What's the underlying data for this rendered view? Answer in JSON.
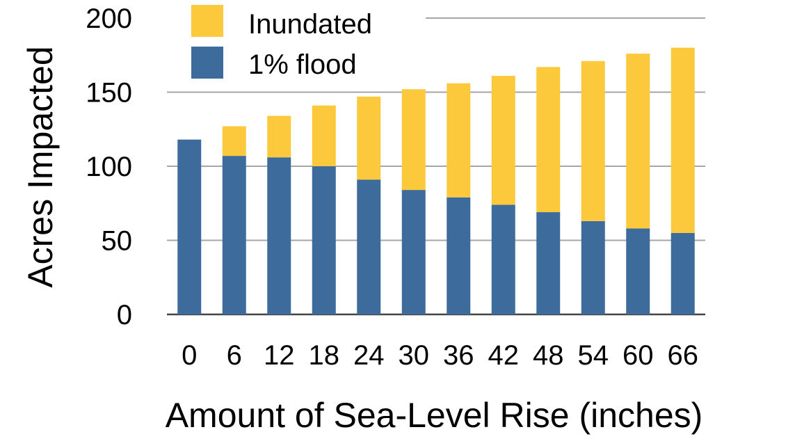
{
  "chart_data": {
    "type": "bar",
    "stacked": true,
    "categories": [
      "0",
      "6",
      "12",
      "18",
      "24",
      "30",
      "36",
      "42",
      "48",
      "54",
      "60",
      "66"
    ],
    "series": [
      {
        "name": "1% flood",
        "color": "#3d6b9c",
        "values": [
          118,
          107,
          106,
          100,
          91,
          84,
          79,
          74,
          69,
          63,
          58,
          55
        ]
      },
      {
        "name": "Inundated",
        "color": "#fcc93c",
        "values": [
          0,
          20,
          28,
          41,
          56,
          68,
          77,
          87,
          98,
          108,
          118,
          125
        ]
      }
    ],
    "xlabel": "Amount of Sea-Level Rise (inches)",
    "ylabel": "Acres Impacted",
    "ylim": [
      0,
      200
    ],
    "yticks": [
      "0",
      "50",
      "100",
      "150",
      "200"
    ],
    "grid": true,
    "legend_position": "top-left"
  }
}
